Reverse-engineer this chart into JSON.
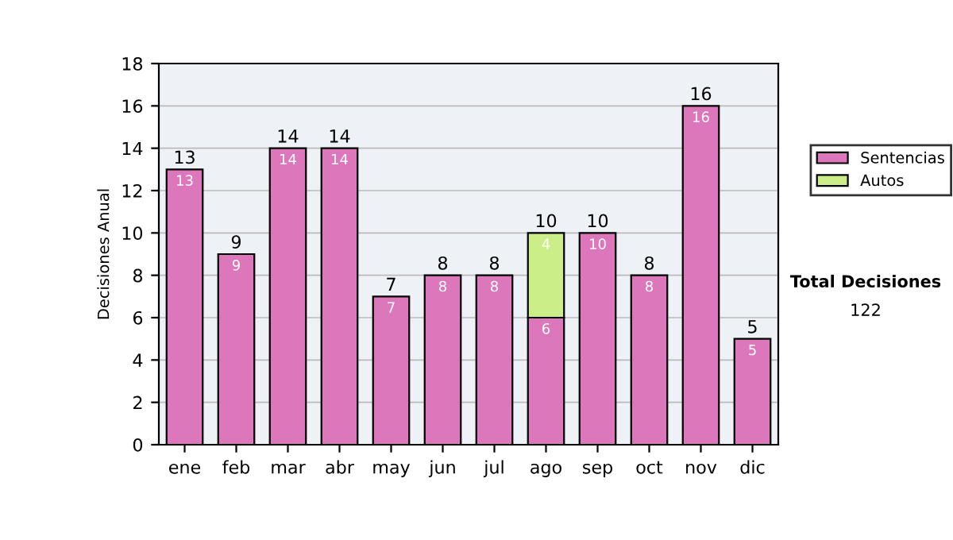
{
  "chart_data": {
    "type": "bar",
    "ylabel": "Decisiones Anual",
    "categories": [
      "ene",
      "feb",
      "mar",
      "abr",
      "may",
      "jun",
      "jul",
      "ago",
      "sep",
      "oct",
      "nov",
      "dic"
    ],
    "stacked": true,
    "series": [
      {
        "name": "Sentencias",
        "color": "#dd77bb",
        "values": [
          13,
          9,
          14,
          14,
          7,
          8,
          8,
          6,
          10,
          8,
          16,
          5
        ],
        "value_labels": [
          "13",
          "9",
          "14",
          "14",
          "7",
          "8",
          "8",
          "6",
          "10",
          "8",
          "16",
          "5"
        ]
      },
      {
        "name": "Autos",
        "color": "#ccee88",
        "values": [
          null,
          null,
          null,
          null,
          null,
          null,
          null,
          4,
          null,
          null,
          null,
          null
        ],
        "value_labels": [
          null,
          null,
          null,
          null,
          null,
          null,
          null,
          "4",
          null,
          null,
          null,
          null
        ]
      }
    ],
    "totals": [
      "13",
      "9",
      "14",
      "14",
      "7",
      "8",
      "8",
      "10",
      "10",
      "8",
      "16",
      "5"
    ],
    "ylim": [
      0,
      18
    ],
    "yticks": [
      0,
      2,
      4,
      6,
      8,
      10,
      12,
      14,
      16,
      18
    ],
    "grid": "y",
    "legend": "right",
    "annotations": [
      "Total Decisiones",
      "122"
    ]
  }
}
